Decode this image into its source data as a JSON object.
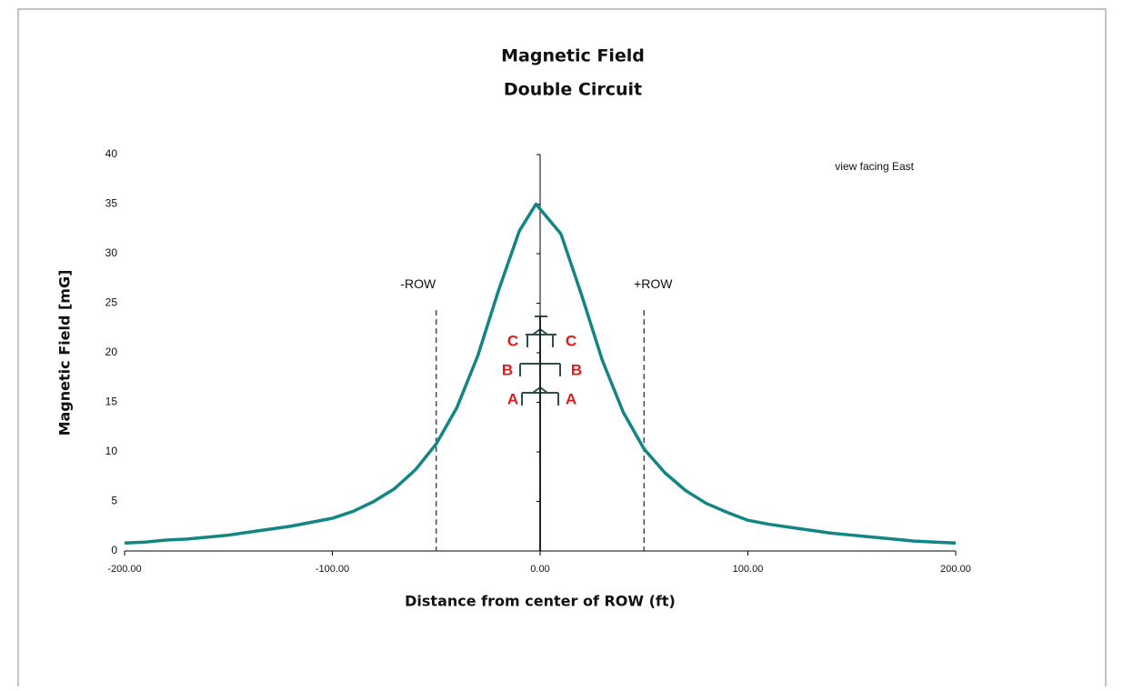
{
  "chart_data": {
    "type": "line",
    "title": "Magnetic Field",
    "subtitle": "Double Circuit",
    "x_label": "Distance from center of ROW (ft)",
    "y_label": "Magnetic Field [mG]",
    "annotation": "view facing East",
    "x": [
      -200,
      -190,
      -180,
      -170,
      -160,
      -150,
      -140,
      -130,
      -120,
      -110,
      -100,
      -90,
      -80,
      -70,
      -60,
      -50,
      -40,
      -30,
      -20,
      -10,
      -2,
      10,
      20,
      30,
      40,
      50,
      60,
      70,
      80,
      90,
      100,
      110,
      120,
      130,
      140,
      150,
      160,
      170,
      180,
      190,
      200
    ],
    "series": [
      {
        "name": "Magnetic Field",
        "color": "#138585",
        "values": [
          0.8,
          0.9,
          1.1,
          1.2,
          1.4,
          1.6,
          1.9,
          2.2,
          2.5,
          2.9,
          3.3,
          4.0,
          5.0,
          6.3,
          8.2,
          10.8,
          14.5,
          19.7,
          26.3,
          32.3,
          35,
          32.0,
          25.8,
          19.2,
          14.0,
          10.3,
          7.9,
          6.1,
          4.8,
          3.9,
          3.1,
          2.7,
          2.4,
          2.1,
          1.8,
          1.6,
          1.4,
          1.2,
          1.0,
          0.9,
          0.8
        ]
      }
    ],
    "row_lines": [
      {
        "x": -50,
        "top": 24.3,
        "label": "-ROW"
      },
      {
        "x": 50,
        "top": 24.3,
        "label": "+ROW"
      }
    ],
    "phase_labels": [
      "C",
      "B",
      "A"
    ],
    "phase_color": "#e0191b",
    "xlim": [
      -200,
      200
    ],
    "xticks": [
      {
        "value": -200,
        "label": "-200.00"
      },
      {
        "value": -100,
        "label": "-100.00"
      },
      {
        "value": 0,
        "label": "0.00"
      },
      {
        "value": 100,
        "label": "100.00"
      },
      {
        "value": 200,
        "label": "200.00"
      }
    ],
    "ylim": [
      0,
      40
    ],
    "yticks": [
      0,
      5,
      10,
      15,
      20,
      25,
      30,
      35,
      40
    ],
    "grid": false
  }
}
